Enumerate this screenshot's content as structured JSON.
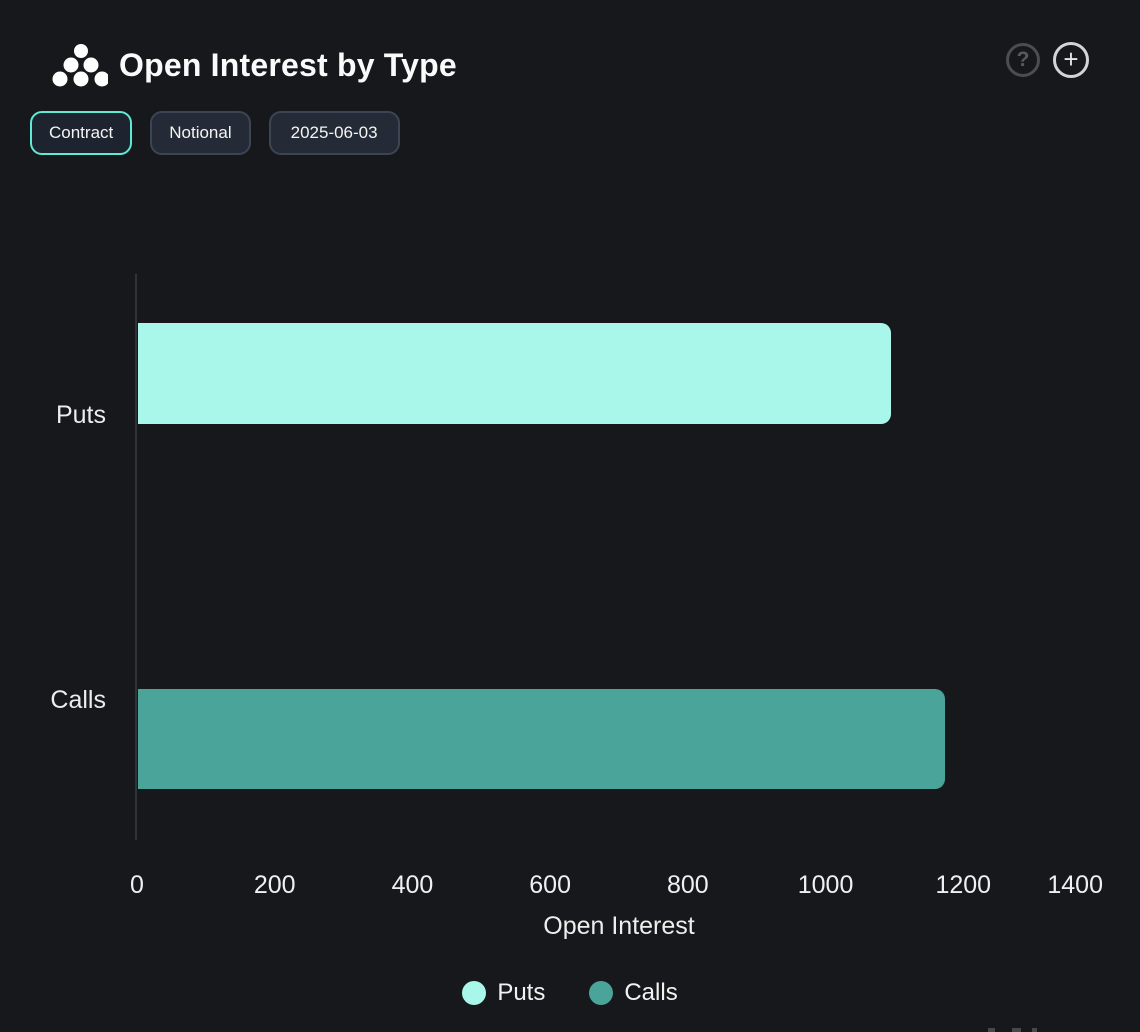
{
  "header": {
    "title": "Open Interest by Type",
    "icons": {
      "logo": "dot-cluster-logo",
      "help": "?",
      "add": "+"
    }
  },
  "toolbar": {
    "chips": [
      {
        "label": "Contract",
        "selected": true
      },
      {
        "label": "Notional",
        "selected": false
      },
      {
        "label": "2025-06-03",
        "selected": false
      }
    ]
  },
  "chart_data": {
    "type": "bar",
    "orientation": "horizontal",
    "title": "Open Interest by Type",
    "xlabel": "Open Interest",
    "ylabel": "",
    "xlim": [
      0,
      1400
    ],
    "x_ticks": [
      0,
      200,
      400,
      600,
      800,
      1000,
      1200,
      1400
    ],
    "grid": false,
    "categories": [
      "Puts",
      "Calls"
    ],
    "series": [
      {
        "name": "Puts",
        "category": "Puts",
        "value": 1093,
        "color": "#a9f7ea"
      },
      {
        "name": "Calls",
        "category": "Calls",
        "value": 1172,
        "color": "#4aa49a"
      }
    ],
    "legend_position": "bottom",
    "legend": [
      {
        "label": "Puts",
        "color": "#a9f7ea"
      },
      {
        "label": "Calls",
        "color": "#4aa49a"
      }
    ],
    "colors": {
      "background": "#17181b",
      "axis_line": "#303338",
      "tick_text": "#f0f0f0"
    }
  }
}
